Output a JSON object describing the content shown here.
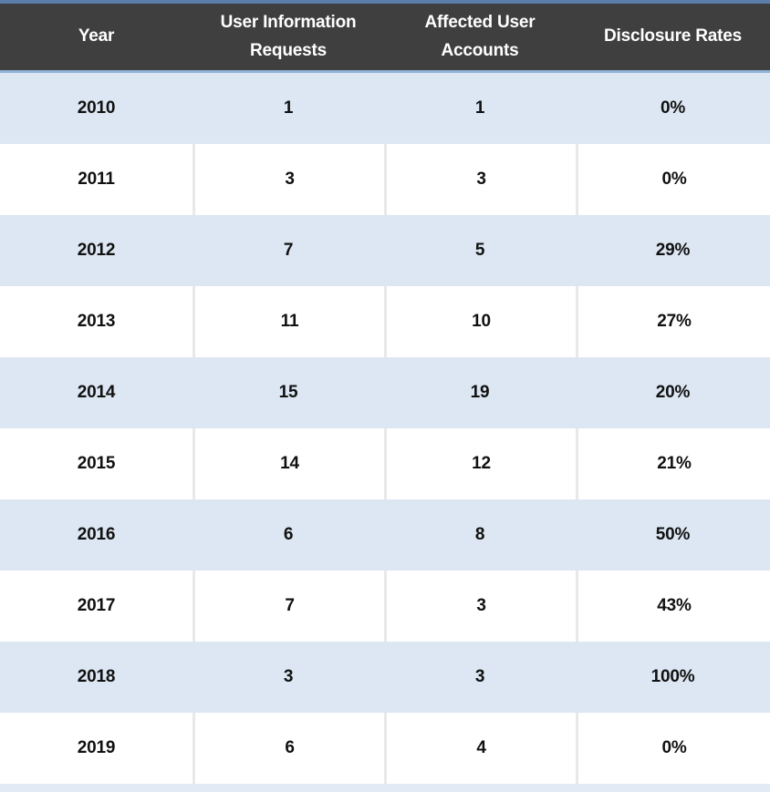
{
  "table": {
    "columns": [
      {
        "label": "Year"
      },
      {
        "label": "User Information Requests"
      },
      {
        "label": "Affected User Accounts"
      },
      {
        "label": "Disclosure Rates"
      }
    ],
    "rows": [
      [
        "2010",
        "1",
        "1",
        "0%"
      ],
      [
        "2011",
        "3",
        "3",
        "0%"
      ],
      [
        "2012",
        "7",
        "5",
        "29%"
      ],
      [
        "2013",
        "11",
        "10",
        "27%"
      ],
      [
        "2014",
        "15",
        "19",
        "20%"
      ],
      [
        "2015",
        "14",
        "12",
        "21%"
      ],
      [
        "2016",
        "6",
        "8",
        "50%"
      ],
      [
        "2017",
        "7",
        "3",
        "43%"
      ],
      [
        "2018",
        "3",
        "3",
        "100%"
      ],
      [
        "2019",
        "6",
        "4",
        "0%"
      ]
    ]
  },
  "colors": {
    "header_bg": "#3F3F3F",
    "header_text": "#FFFFFF",
    "top_border": "#5A7DA9",
    "header_underline": "#8FB3D8",
    "band_blue": "#DCE7F3",
    "band_white": "#FFFFFF",
    "separator": "#E8E8E8",
    "cell_text": "#111111",
    "bottom_strip": "#E2EBF5"
  },
  "chart_data": {
    "type": "table",
    "columns": [
      "Year",
      "User Information Requests",
      "Affected User Accounts",
      "Disclosure Rates"
    ],
    "rows": [
      [
        2010,
        1,
        1,
        "0%"
      ],
      [
        2011,
        3,
        3,
        "0%"
      ],
      [
        2012,
        7,
        5,
        "29%"
      ],
      [
        2013,
        11,
        10,
        "27%"
      ],
      [
        2014,
        15,
        19,
        "20%"
      ],
      [
        2015,
        14,
        12,
        "21%"
      ],
      [
        2016,
        6,
        8,
        "50%"
      ],
      [
        2017,
        7,
        3,
        "43%"
      ],
      [
        2018,
        3,
        3,
        "100%"
      ],
      [
        2019,
        6,
        4,
        "0%"
      ]
    ],
    "title": "",
    "layout": {
      "header_style": "dark-bar",
      "banding": "alternating blue/white rows starting blue",
      "column_separators": "visible only on white rows"
    }
  }
}
